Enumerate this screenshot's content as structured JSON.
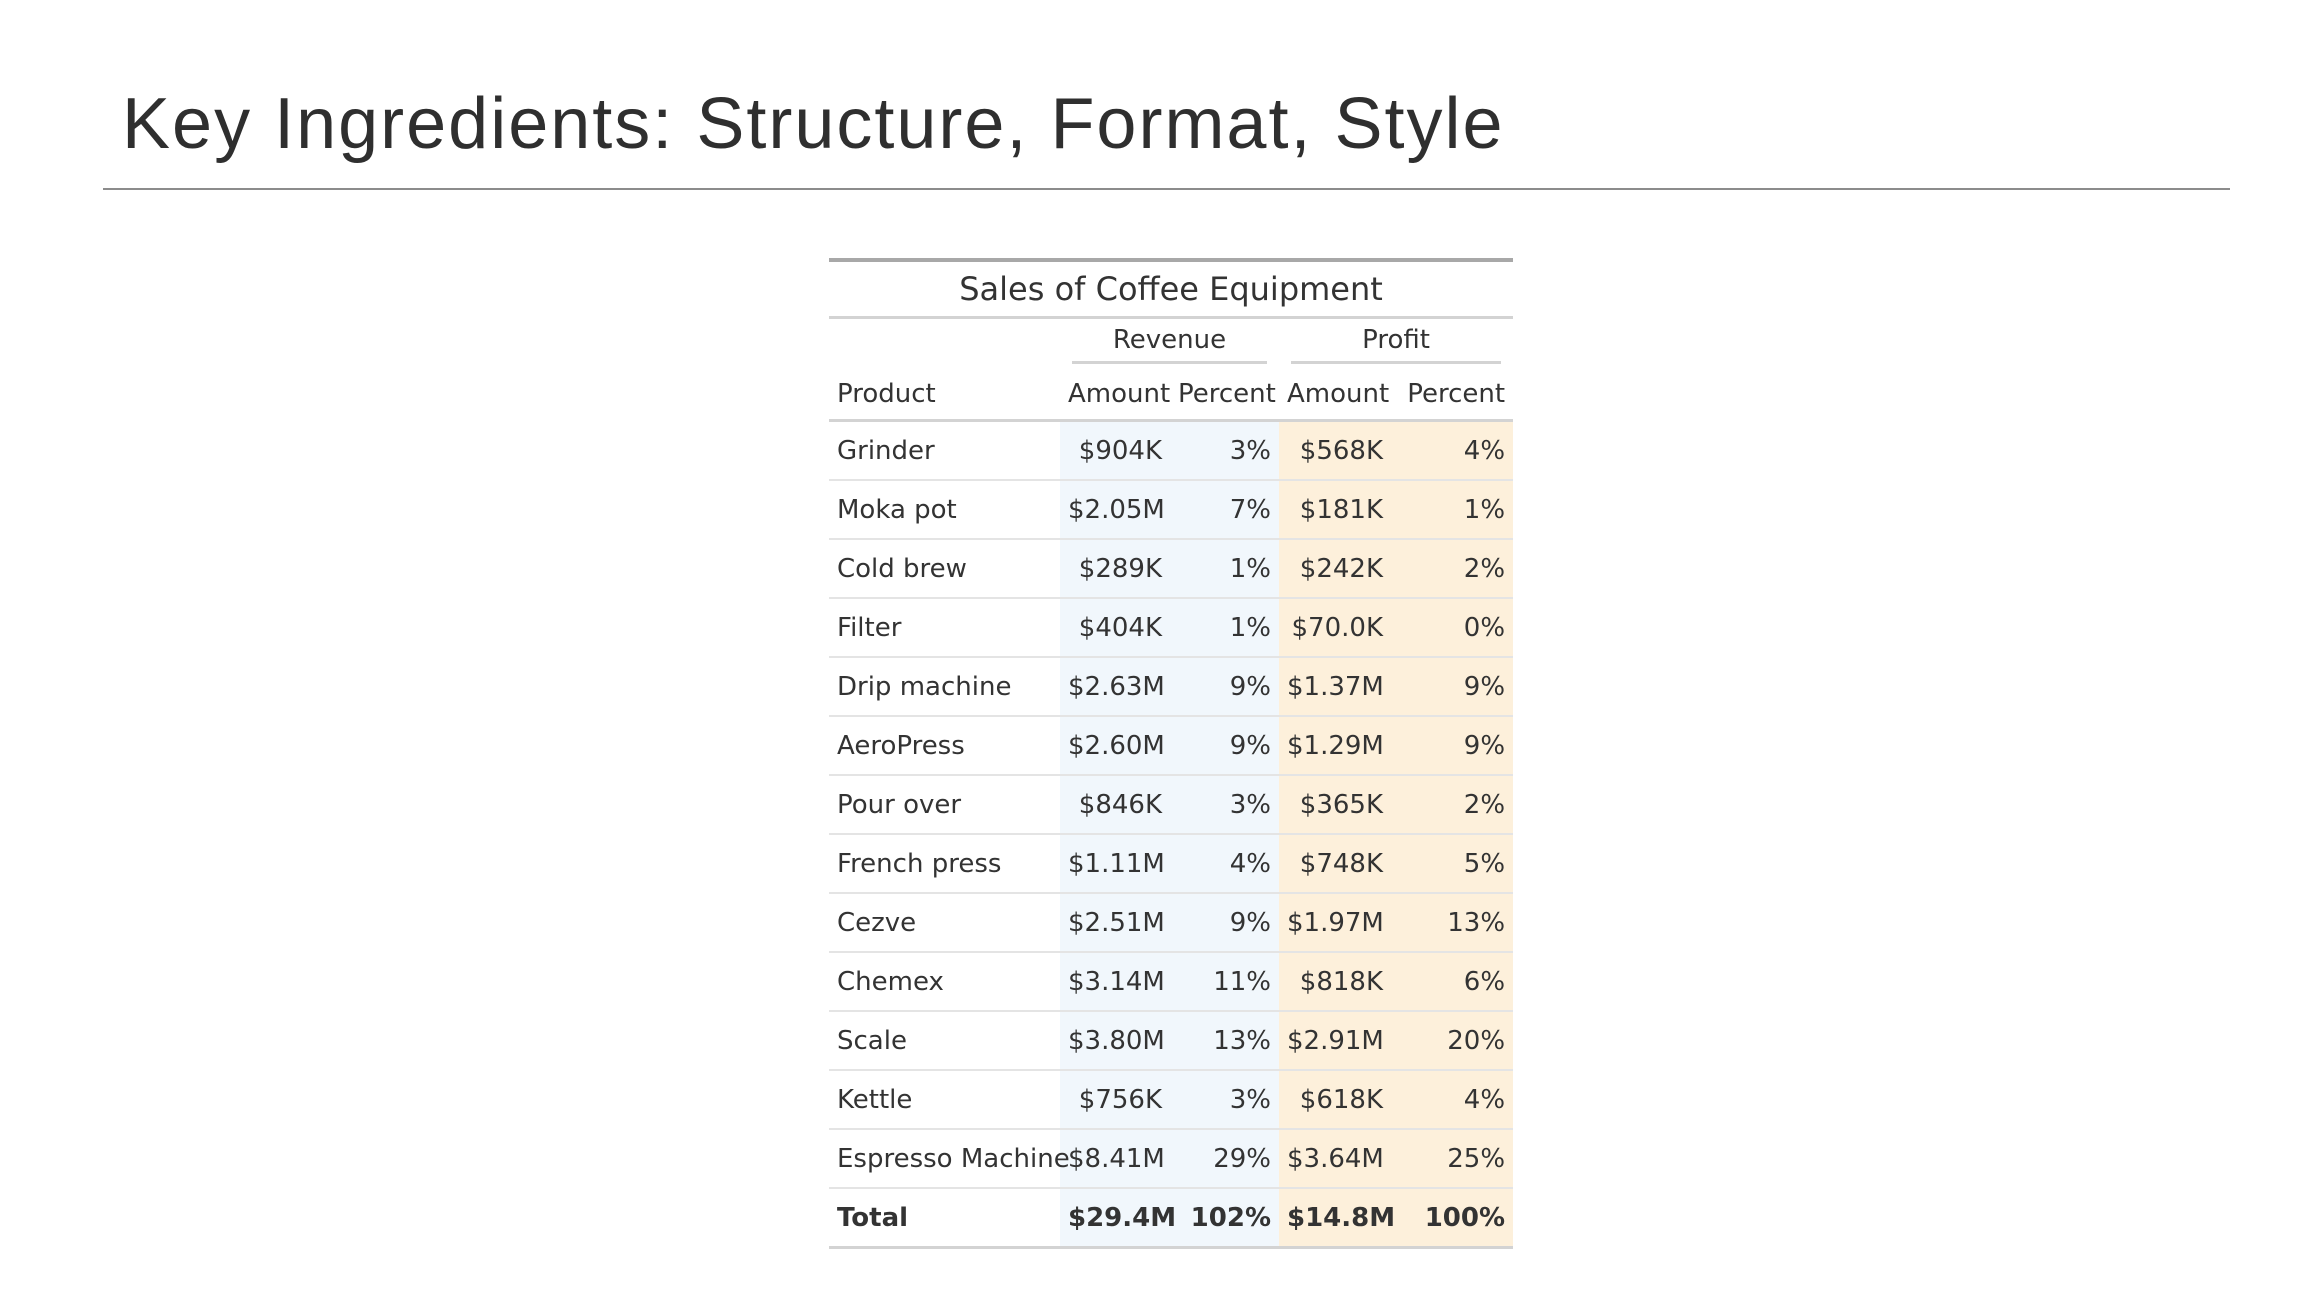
{
  "slide": {
    "title": "Key Ingredients: Structure, Format, Style"
  },
  "table": {
    "title": "Sales of Coffee Equipment",
    "spanners": {
      "revenue": "Revenue",
      "profit": "Profit"
    },
    "columns": {
      "product": "Product",
      "revenue_amount": "Amount",
      "revenue_percent": "Percent",
      "profit_amount": "Amount",
      "profit_percent": "Percent"
    },
    "colors": {
      "revenue_fill": "#f1f7fc",
      "profit_fill": "#fdf0db"
    },
    "rows": [
      {
        "product": "Grinder",
        "rev_amt": "$904K",
        "rev_pct": "3%",
        "prof_amt": "$568K",
        "prof_pct": "4%"
      },
      {
        "product": "Moka pot",
        "rev_amt": "$2.05M",
        "rev_pct": "7%",
        "prof_amt": "$181K",
        "prof_pct": "1%"
      },
      {
        "product": "Cold brew",
        "rev_amt": "$289K",
        "rev_pct": "1%",
        "prof_amt": "$242K",
        "prof_pct": "2%"
      },
      {
        "product": "Filter",
        "rev_amt": "$404K",
        "rev_pct": "1%",
        "prof_amt": "$70.0K",
        "prof_pct": "0%"
      },
      {
        "product": "Drip machine",
        "rev_amt": "$2.63M",
        "rev_pct": "9%",
        "prof_amt": "$1.37M",
        "prof_pct": "9%"
      },
      {
        "product": "AeroPress",
        "rev_amt": "$2.60M",
        "rev_pct": "9%",
        "prof_amt": "$1.29M",
        "prof_pct": "9%"
      },
      {
        "product": "Pour over",
        "rev_amt": "$846K",
        "rev_pct": "3%",
        "prof_amt": "$365K",
        "prof_pct": "2%"
      },
      {
        "product": "French press",
        "rev_amt": "$1.11M",
        "rev_pct": "4%",
        "prof_amt": "$748K",
        "prof_pct": "5%"
      },
      {
        "product": "Cezve",
        "rev_amt": "$2.51M",
        "rev_pct": "9%",
        "prof_amt": "$1.97M",
        "prof_pct": "13%"
      },
      {
        "product": "Chemex",
        "rev_amt": "$3.14M",
        "rev_pct": "11%",
        "prof_amt": "$818K",
        "prof_pct": "6%"
      },
      {
        "product": "Scale",
        "rev_amt": "$3.80M",
        "rev_pct": "13%",
        "prof_amt": "$2.91M",
        "prof_pct": "20%"
      },
      {
        "product": "Kettle",
        "rev_amt": "$756K",
        "rev_pct": "3%",
        "prof_amt": "$618K",
        "prof_pct": "4%"
      },
      {
        "product": "Espresso Machine",
        "rev_amt": "$8.41M",
        "rev_pct": "29%",
        "prof_amt": "$3.64M",
        "prof_pct": "25%"
      }
    ],
    "total": {
      "product": "Total",
      "rev_amt": "$29.4M",
      "rev_pct": "102%",
      "prof_amt": "$14.8M",
      "prof_pct": "100%"
    }
  }
}
